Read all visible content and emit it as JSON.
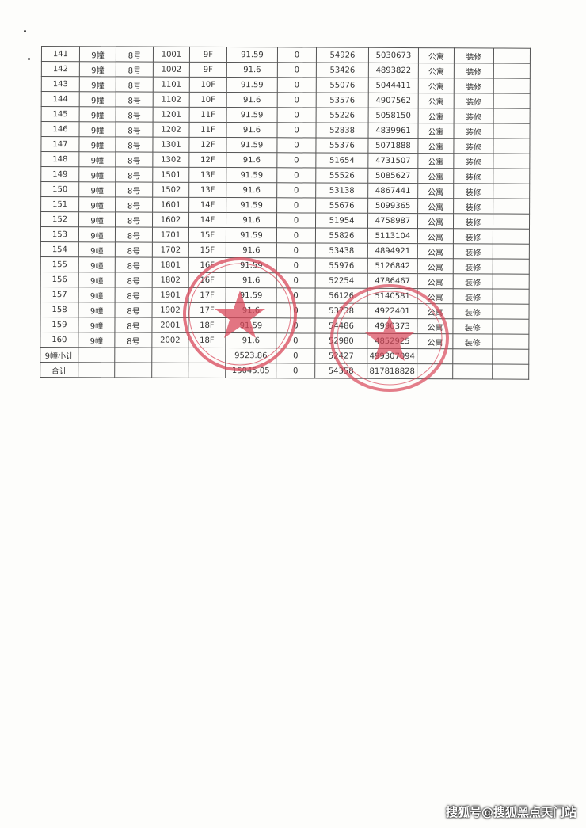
{
  "table": {
    "rows": [
      [
        "141",
        "9幢",
        "8号",
        "1001",
        "9F",
        "91.59",
        "0",
        "54926",
        "5030673",
        "公寓",
        "装修",
        ""
      ],
      [
        "142",
        "9幢",
        "8号",
        "1002",
        "9F",
        "91.6",
        "0",
        "53426",
        "4893822",
        "公寓",
        "装修",
        ""
      ],
      [
        "143",
        "9幢",
        "8号",
        "1101",
        "10F",
        "91.59",
        "0",
        "55076",
        "5044411",
        "公寓",
        "装修",
        ""
      ],
      [
        "144",
        "9幢",
        "8号",
        "1102",
        "10F",
        "91.6",
        "0",
        "53576",
        "4907562",
        "公寓",
        "装修",
        ""
      ],
      [
        "145",
        "9幢",
        "8号",
        "1201",
        "11F",
        "91.59",
        "0",
        "55226",
        "5058150",
        "公寓",
        "装修",
        ""
      ],
      [
        "146",
        "9幢",
        "8号",
        "1202",
        "11F",
        "91.6",
        "0",
        "52838",
        "4839961",
        "公寓",
        "装修",
        ""
      ],
      [
        "147",
        "9幢",
        "8号",
        "1301",
        "12F",
        "91.59",
        "0",
        "55376",
        "5071888",
        "公寓",
        "装修",
        ""
      ],
      [
        "148",
        "9幢",
        "8号",
        "1302",
        "12F",
        "91.6",
        "0",
        "51654",
        "4731507",
        "公寓",
        "装修",
        ""
      ],
      [
        "149",
        "9幢",
        "8号",
        "1501",
        "13F",
        "91.59",
        "0",
        "55526",
        "5085627",
        "公寓",
        "装修",
        ""
      ],
      [
        "150",
        "9幢",
        "8号",
        "1502",
        "13F",
        "91.6",
        "0",
        "53138",
        "4867441",
        "公寓",
        "装修",
        ""
      ],
      [
        "151",
        "9幢",
        "8号",
        "1601",
        "14F",
        "91.59",
        "0",
        "55676",
        "5099365",
        "公寓",
        "装修",
        ""
      ],
      [
        "152",
        "9幢",
        "8号",
        "1602",
        "14F",
        "91.6",
        "0",
        "51954",
        "4758987",
        "公寓",
        "装修",
        ""
      ],
      [
        "153",
        "9幢",
        "8号",
        "1701",
        "15F",
        "91.59",
        "0",
        "55826",
        "5113104",
        "公寓",
        "装修",
        ""
      ],
      [
        "154",
        "9幢",
        "8号",
        "1702",
        "15F",
        "91.6",
        "0",
        "53438",
        "4894921",
        "公寓",
        "装修",
        ""
      ],
      [
        "155",
        "9幢",
        "8号",
        "1801",
        "16F",
        "91.59",
        "0",
        "55976",
        "5126842",
        "公寓",
        "装修",
        ""
      ],
      [
        "156",
        "9幢",
        "8号",
        "1802",
        "16F",
        "91.6",
        "0",
        "52254",
        "4786467",
        "公寓",
        "装修",
        ""
      ],
      [
        "157",
        "9幢",
        "8号",
        "1901",
        "17F",
        "91.59",
        "0",
        "56126",
        "5140581",
        "公寓",
        "装修",
        ""
      ],
      [
        "158",
        "9幢",
        "8号",
        "1902",
        "17F",
        "91.6",
        "0",
        "53738",
        "4922401",
        "公寓",
        "装修",
        ""
      ],
      [
        "159",
        "9幢",
        "8号",
        "2001",
        "18F",
        "91.59",
        "0",
        "54486",
        "4990373",
        "公寓",
        "装修",
        ""
      ],
      [
        "160",
        "9幢",
        "8号",
        "2002",
        "18F",
        "91.6",
        "0",
        "52980",
        "4852925",
        "公寓",
        "装修",
        ""
      ],
      [
        "9幢小计",
        "",
        "",
        "",
        "",
        "9523.86",
        "0",
        "52427",
        "499307094",
        "",
        "",
        ""
      ],
      [
        "合计",
        "",
        "",
        "",
        "",
        "15045.05",
        "0",
        "54358",
        "817818828",
        "",
        "",
        ""
      ]
    ]
  },
  "stamp_color": "#d9485a",
  "watermark": "搜狐号@搜狐黑点天门站"
}
